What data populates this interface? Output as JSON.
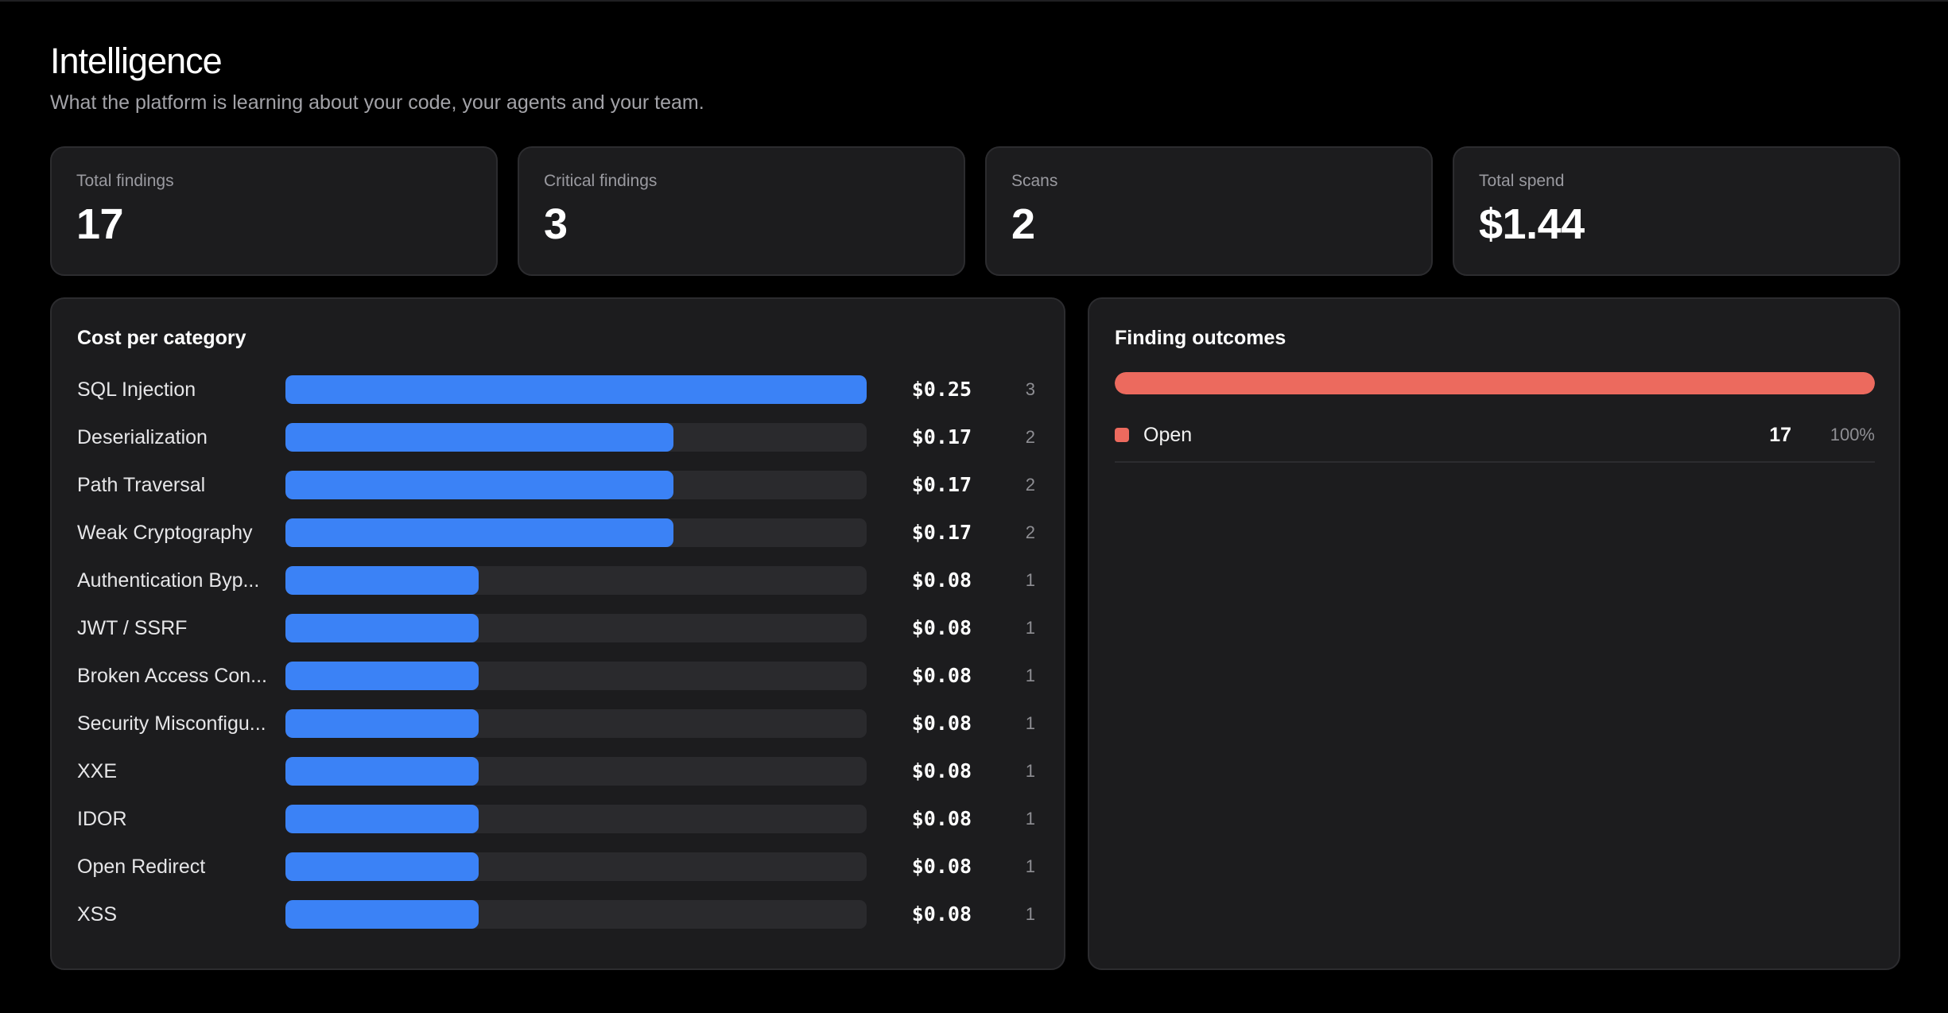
{
  "header": {
    "title": "Intelligence",
    "subtitle": "What the platform is learning about your code, your agents and your team."
  },
  "stats": [
    {
      "label": "Total findings",
      "value": "17"
    },
    {
      "label": "Critical findings",
      "value": "3"
    },
    {
      "label": "Scans",
      "value": "2"
    },
    {
      "label": "Total spend",
      "value": "$1.44"
    }
  ],
  "cost_panel": {
    "title": "Cost per category",
    "categories": [
      {
        "label": "SQL Injection",
        "cost": "$0.25",
        "count": "3",
        "share": 1.0
      },
      {
        "label": "Deserialization",
        "cost": "$0.17",
        "count": "2",
        "share": 0.667
      },
      {
        "label": "Path Traversal",
        "cost": "$0.17",
        "count": "2",
        "share": 0.667
      },
      {
        "label": "Weak Cryptography",
        "cost": "$0.17",
        "count": "2",
        "share": 0.667
      },
      {
        "label": "Authentication Byp...",
        "cost": "$0.08",
        "count": "1",
        "share": 0.333
      },
      {
        "label": "JWT / SSRF",
        "cost": "$0.08",
        "count": "1",
        "share": 0.333
      },
      {
        "label": "Broken Access Con...",
        "cost": "$0.08",
        "count": "1",
        "share": 0.333
      },
      {
        "label": "Security Misconfigu...",
        "cost": "$0.08",
        "count": "1",
        "share": 0.333
      },
      {
        "label": "XXE",
        "cost": "$0.08",
        "count": "1",
        "share": 0.333
      },
      {
        "label": "IDOR",
        "cost": "$0.08",
        "count": "1",
        "share": 0.333
      },
      {
        "label": "Open Redirect",
        "cost": "$0.08",
        "count": "1",
        "share": 0.333
      },
      {
        "label": "XSS",
        "cost": "$0.08",
        "count": "1",
        "share": 0.333
      }
    ],
    "bar_color": "#3b82f6"
  },
  "outcomes_panel": {
    "title": "Finding outcomes",
    "outcomes": [
      {
        "label": "Open",
        "count": "17",
        "percent": "100%",
        "share": 1.0,
        "color": "#ec6a5e"
      }
    ]
  }
}
